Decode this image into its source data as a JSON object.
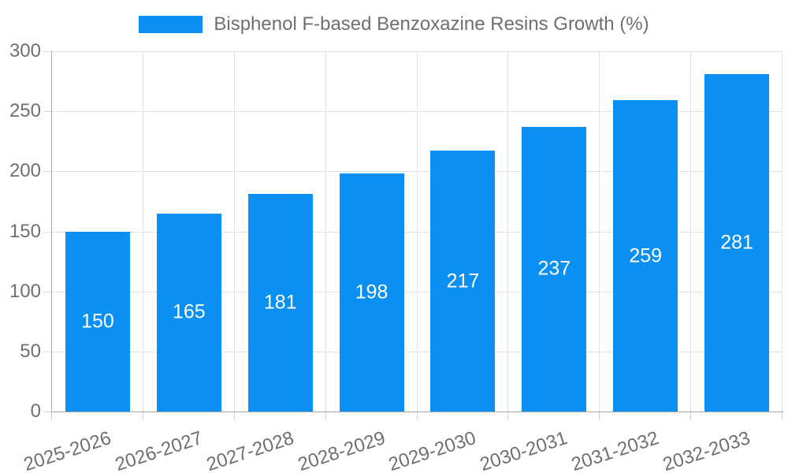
{
  "legend": {
    "label": "Bisphenol F-based Benzoxazine Resins Growth (%)",
    "swatch_color": "#0a8ff2"
  },
  "chart_data": {
    "type": "bar",
    "title": "",
    "xlabel": "",
    "ylabel": "",
    "categories": [
      "2025-2026",
      "2026-2027",
      "2027-2028",
      "2028-2029",
      "2029-2030",
      "2030-2031",
      "2031-2032",
      "2032-2033"
    ],
    "series": [
      {
        "name": "Bisphenol F-based Benzoxazine Resins Growth (%)",
        "values": [
          150,
          165,
          181,
          198,
          217,
          237,
          259,
          281
        ],
        "color": "#0a8ff2"
      }
    ],
    "values": [
      150,
      165,
      181,
      198,
      217,
      237,
      259,
      281
    ],
    "value_labels": [
      "150",
      "165",
      "181",
      "198",
      "217",
      "237",
      "259",
      "281"
    ],
    "value_label_color": "#ffffff",
    "ylim": [
      0,
      300
    ],
    "yticks": [
      0,
      50,
      100,
      150,
      200,
      250,
      300
    ],
    "grid": true,
    "grid_color": "#e2e2e2",
    "axis_color": "#a5a5a5",
    "text_color": "#6f6f6f",
    "legend_position": "top",
    "x_label_rotation_deg": -18
  }
}
